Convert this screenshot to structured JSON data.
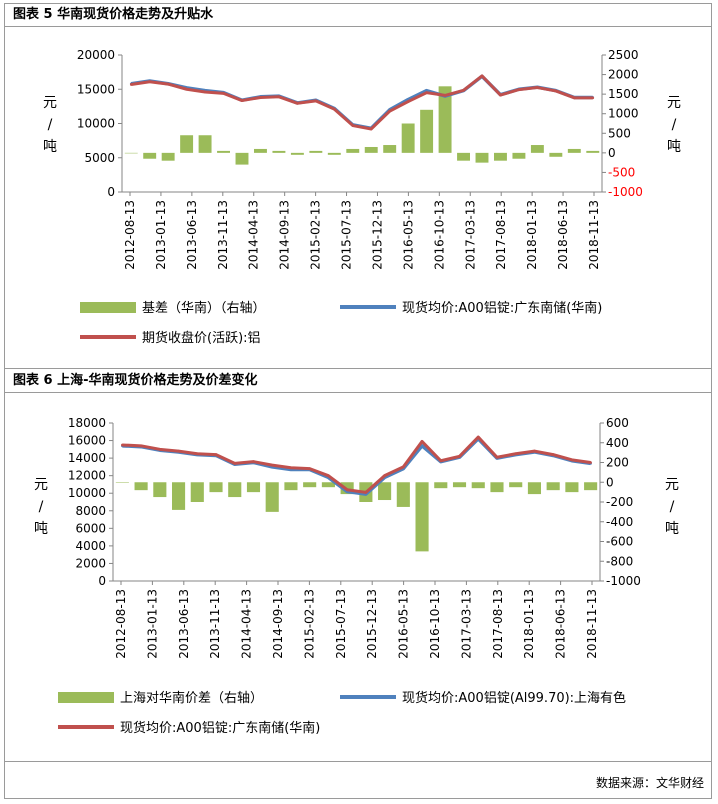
{
  "figure1": {
    "title": "图表 5 华南现货价格走势及升贴水",
    "chart_data": {
      "type": "line",
      "y_left_label": [
        "元",
        "/",
        "吨"
      ],
      "y_right_label": [
        "元",
        "/",
        "吨"
      ],
      "ylim_left": [
        0,
        20000
      ],
      "ylim_right": [
        -1000,
        2500
      ],
      "left_ticks": [
        "0",
        "5000",
        "10000",
        "15000",
        "20000"
      ],
      "right_ticks": [
        "-1000",
        "-500",
        "0",
        "500",
        "1000",
        "1500",
        "2000",
        "2500"
      ],
      "right_negative_color": "#ff0000",
      "x_ticks": [
        "2012-08-13",
        "2013-01-13",
        "2013-06-13",
        "2013-11-13",
        "2014-04-13",
        "2014-09-13",
        "2015-02-13",
        "2015-07-13",
        "2015-12-13",
        "2016-05-13",
        "2016-10-13",
        "2017-03-13",
        "2017-08-13",
        "2018-01-13",
        "2018-06-13",
        "2018-11-13"
      ],
      "series": [
        {
          "name": "基差（华南）（右轴）",
          "type": "bar",
          "axis": "right",
          "color": "#9bbb59",
          "values": [
            0,
            -150,
            -200,
            450,
            450,
            50,
            -300,
            100,
            50,
            -50,
            50,
            -50,
            100,
            150,
            200,
            750,
            1100,
            1700,
            -200,
            -250,
            -200,
            -150,
            200,
            -100,
            100,
            50
          ]
        },
        {
          "name": "现货均价:A00铝锭:广东南储(华南)",
          "type": "line",
          "axis": "left",
          "color": "#4f81bd",
          "values": [
            15800,
            16200,
            15800,
            15200,
            14800,
            14500,
            13400,
            13900,
            14000,
            13000,
            13400,
            12200,
            9800,
            9300,
            12000,
            13500,
            14800,
            14000,
            14800,
            16900,
            14200,
            15000,
            15300,
            14800,
            13800,
            13800
          ]
        },
        {
          "name": "期货收盘价(活跃):铝",
          "type": "line",
          "axis": "left",
          "color": "#c0504d",
          "values": [
            15700,
            16100,
            15750,
            15000,
            14600,
            14400,
            13350,
            13800,
            13900,
            12950,
            13300,
            12100,
            9700,
            9200,
            11800,
            13200,
            14500,
            14100,
            14850,
            16950,
            14150,
            14950,
            15250,
            14750,
            13750,
            13750
          ]
        }
      ]
    }
  },
  "figure2": {
    "title": "图表 6 上海-华南现货价格走势及价差变化",
    "chart_data": {
      "type": "line",
      "y_left_label": [
        "元",
        "/",
        "吨"
      ],
      "y_right_label": [
        "元",
        "/",
        "吨"
      ],
      "ylim_left": [
        0,
        18000
      ],
      "ylim_right": [
        -1000,
        600
      ],
      "left_ticks": [
        "0",
        "2000",
        "4000",
        "6000",
        "8000",
        "10000",
        "12000",
        "14000",
        "16000",
        "18000"
      ],
      "right_ticks": [
        "-1000",
        "-800",
        "-600",
        "-400",
        "-200",
        "0",
        "200",
        "400",
        "600"
      ],
      "x_ticks": [
        "2012-08-13",
        "2013-01-13",
        "2013-06-13",
        "2013-11-13",
        "2014-04-13",
        "2014-09-13",
        "2015-02-13",
        "2015-07-13",
        "2015-12-13",
        "2016-05-13",
        "2016-10-13",
        "2017-03-13",
        "2017-08-13",
        "2018-01-13",
        "2018-06-13",
        "2018-11-13"
      ],
      "series": [
        {
          "name": "上海对华南价差（右轴）",
          "type": "bar",
          "axis": "right",
          "color": "#9bbb59",
          "values": [
            0,
            -80,
            -150,
            -280,
            -200,
            -100,
            -150,
            -100,
            -300,
            -80,
            -50,
            -50,
            -120,
            -200,
            -180,
            -250,
            -700,
            -60,
            -50,
            -60,
            -100,
            -50,
            -120,
            -80,
            -100,
            -80
          ]
        },
        {
          "name": "现货均价:A00铝锭(Al99.70):上海有色",
          "type": "line",
          "axis": "left",
          "color": "#4f81bd",
          "values": [
            15400,
            15300,
            14900,
            14700,
            14400,
            14300,
            13300,
            13500,
            13000,
            12700,
            12700,
            11800,
            10200,
            9900,
            11800,
            12800,
            15400,
            13600,
            14100,
            16200,
            14000,
            14400,
            14700,
            14300,
            13700,
            13400
          ]
        },
        {
          "name": "现货均价:A00铝锭:广东南储(华南)",
          "type": "line",
          "axis": "left",
          "color": "#c0504d",
          "values": [
            15500,
            15400,
            15000,
            14800,
            14500,
            14400,
            13400,
            13600,
            13200,
            12900,
            12800,
            12000,
            10400,
            10100,
            12000,
            13000,
            15900,
            13700,
            14200,
            16400,
            14100,
            14500,
            14800,
            14400,
            13800,
            13500
          ]
        }
      ]
    }
  },
  "source": "数据来源：文华财经"
}
